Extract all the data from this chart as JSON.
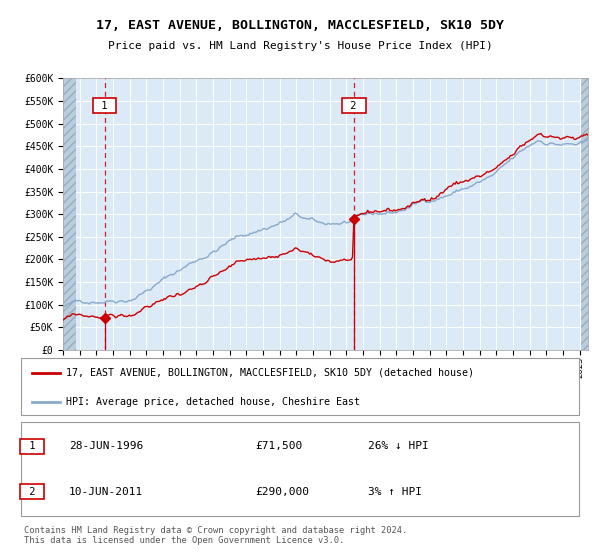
{
  "title1": "17, EAST AVENUE, BOLLINGTON, MACCLESFIELD, SK10 5DY",
  "title2": "Price paid vs. HM Land Registry's House Price Index (HPI)",
  "bg_color": "#dce9f7",
  "red_color": "#cc0000",
  "blue_color": "#88aacc",
  "dashed_color": "#cc0000",
  "transaction1_date": 1996.49,
  "transaction1_price": 71500,
  "transaction2_date": 2011.44,
  "transaction2_price": 290000,
  "ylim_min": 0,
  "ylim_max": 600000,
  "xlim_min": 1994.0,
  "xlim_max": 2025.5,
  "legend_label_red": "17, EAST AVENUE, BOLLINGTON, MACCLESFIELD, SK10 5DY (detached house)",
  "legend_label_blue": "HPI: Average price, detached house, Cheshire East",
  "footnote": "Contains HM Land Registry data © Crown copyright and database right 2024.\nThis data is licensed under the Open Government Licence v3.0.",
  "table_row1": [
    "1",
    "28-JUN-1996",
    "£71,500",
    "26% ↓ HPI"
  ],
  "table_row2": [
    "2",
    "10-JUN-2011",
    "£290,000",
    "3% ↑ HPI"
  ]
}
